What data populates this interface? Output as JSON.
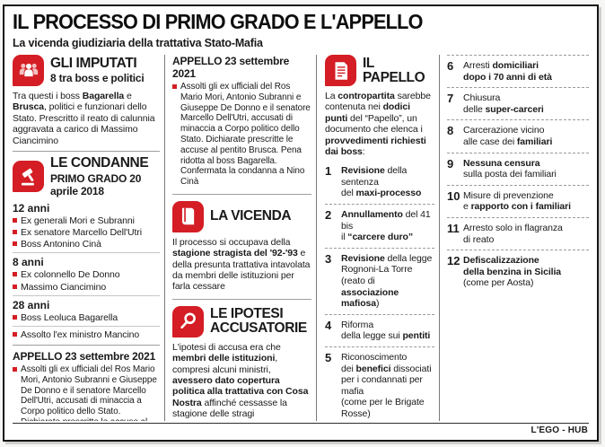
{
  "header": {
    "title": "IL PROCESSO DI PRIMO GRADO E L'APPELLO",
    "subtitle": "La vicenda giudiziaria della trattativa Stato-Mafia"
  },
  "footer": {
    "credit": "L'EGO - HUB"
  },
  "colors": {
    "accent_red": "#d41d24",
    "text": "#1a1a1a",
    "column_divider": "#7a7a7a"
  },
  "icons": {
    "imputati": "people-group-icon",
    "condanne": "gavel-icon",
    "vicenda": "book-icon",
    "ipotesi": "magnifier-icon",
    "papello": "document-icon"
  },
  "imputati": {
    "title": "GLI IMPUTATI",
    "subtitle": "8 tra boss e politici",
    "body": [
      {
        "t": "Tra questi i boss "
      },
      {
        "t": "Bagarella",
        "b": true
      },
      {
        "t": " e "
      },
      {
        "t": "Brusca",
        "b": true
      },
      {
        "t": ", politici e funzionari dello Stato. Prescritto il reato di calunnia aggravata a carico di Massimo Ciancimino"
      }
    ]
  },
  "condanne": {
    "title": "LE CONDANNE",
    "subtitle": "PRIMO GRADO 20 aprile 2018",
    "groups": [
      {
        "years": "12 anni",
        "items": [
          "Ex generali Mori e Subranni",
          "Ex senatore Marcello Dell'Utri",
          "Boss Antonino Cinà"
        ]
      },
      {
        "years": "8 anni",
        "items": [
          "Ex colonnello De Donno",
          "Massimo Ciancimino"
        ]
      },
      {
        "years": "28 anni",
        "items": [
          "Boss Leoluca Bagarella"
        ]
      }
    ],
    "acquittal": "Assolto l'ex ministro Mancino"
  },
  "appello_primo": {
    "title": "APPELLO 23 settembre 2021",
    "body": "Assolti gli ex ufficiali del Ros Mario Mori, Antonio Subranni e Giuseppe De Donno e il senatore Marcello Dell'Utri, accusati di minaccia a Corpo politico dello Stato. Dichiarate prescritte le accuse al pentito Brusca. Pena ridotta al boss Bagarella."
  },
  "appello_secondo": {
    "title": "APPELLO 23 settembre 2021",
    "body": "Assolti gli ex ufficiali del Ros Mario Mori, Antonio Subranni e Giuseppe De Donno e il senatore Marcello Dell'Utri, accusati di minaccia a Corpo politico dello Stato. Dichiarate prescritte le accuse al pentito Brusca. Pena ridotta al boss Bagarella. Confermata la condanna a Nino Cinà"
  },
  "vicenda": {
    "title": "LA VICENDA",
    "body": [
      {
        "t": "Il processo si occupava della "
      },
      {
        "t": "stagione stragista del '92-'93",
        "b": true
      },
      {
        "t": " e della presunta trattativa intavolata da membri delle istituzioni per farla cessare"
      }
    ]
  },
  "ipotesi": {
    "title": "LE IPOTESI\nACCUSATORIE",
    "body": [
      {
        "t": "L'ipotesi di accusa era che "
      },
      {
        "t": "membri delle istituzioni",
        "b": true
      },
      {
        "t": ", compresi alcuni ministri, "
      },
      {
        "t": "avessero dato copertura politica alla trattativa con Cosa Nostra",
        "b": true
      },
      {
        "t": " affinché cessasse la stagione delle stragi"
      }
    ]
  },
  "papello": {
    "title": "IL PAPELLO",
    "body": [
      {
        "t": "La "
      },
      {
        "t": "contropartita",
        "b": true
      },
      {
        "t": " sarebbe contenuta nei "
      },
      {
        "t": "dodici punti",
        "b": true
      },
      {
        "t": " del “Papello”, un documento che elenca i "
      },
      {
        "t": "provvedimenti richiesti dai boss",
        "b": true
      },
      {
        "t": ":"
      }
    ],
    "points": [
      {
        "num": "1",
        "text": [
          {
            "t": "Revisione",
            "b": true
          },
          {
            "t": " della sentenza\ndel "
          },
          {
            "t": "maxi-processo",
            "b": true
          }
        ]
      },
      {
        "num": "2",
        "text": [
          {
            "t": "Annullamento",
            "b": true
          },
          {
            "t": " del 41 bis\nil "
          },
          {
            "t": "“carcere duro”",
            "b": true
          }
        ]
      },
      {
        "num": "3",
        "text": [
          {
            "t": "Revisione",
            "b": true
          },
          {
            "t": " della legge\nRognoni-La Torre\n(reato di "
          },
          {
            "t": "associazione\nmafiosa",
            "b": true
          },
          {
            "t": ")"
          }
        ]
      },
      {
        "num": "4",
        "text": [
          {
            "t": "Riforma\ndella legge sui "
          },
          {
            "t": "pentiti",
            "b": true
          }
        ]
      },
      {
        "num": "5",
        "text": [
          {
            "t": "Riconoscimento\ndei "
          },
          {
            "t": "benefici",
            "b": true
          },
          {
            "t": " dissociati\nper i condannati per mafia\n(come per le Brigate Rosse)"
          }
        ]
      },
      {
        "num": "6",
        "text": [
          {
            "t": "Arresti "
          },
          {
            "t": "domiciliari\ndopo i 70 anni di età",
            "b": true
          }
        ]
      },
      {
        "num": "7",
        "text": [
          {
            "t": "Chiusura\ndelle "
          },
          {
            "t": "super-carceri",
            "b": true
          }
        ]
      },
      {
        "num": "8",
        "text": [
          {
            "t": "Carcerazione vicino\nalle case dei "
          },
          {
            "t": "familiari",
            "b": true
          }
        ]
      },
      {
        "num": "9",
        "text": [
          {
            "t": "Nessuna censura",
            "b": true
          },
          {
            "t": "\nsulla posta dei familiari"
          }
        ]
      },
      {
        "num": "10",
        "text": [
          {
            "t": "Misure di prevenzione\ne "
          },
          {
            "t": "rapporto con i familiari",
            "b": true
          }
        ]
      },
      {
        "num": "11",
        "text": [
          {
            "t": "Arresto solo in flagranza\ndi reato"
          }
        ]
      },
      {
        "num": "12",
        "text": [
          {
            "t": "Defiscalizzazione\ndella benzina in Sicilia",
            "b": true
          },
          {
            "t": "\n(come per Aosta)"
          }
        ]
      }
    ]
  }
}
